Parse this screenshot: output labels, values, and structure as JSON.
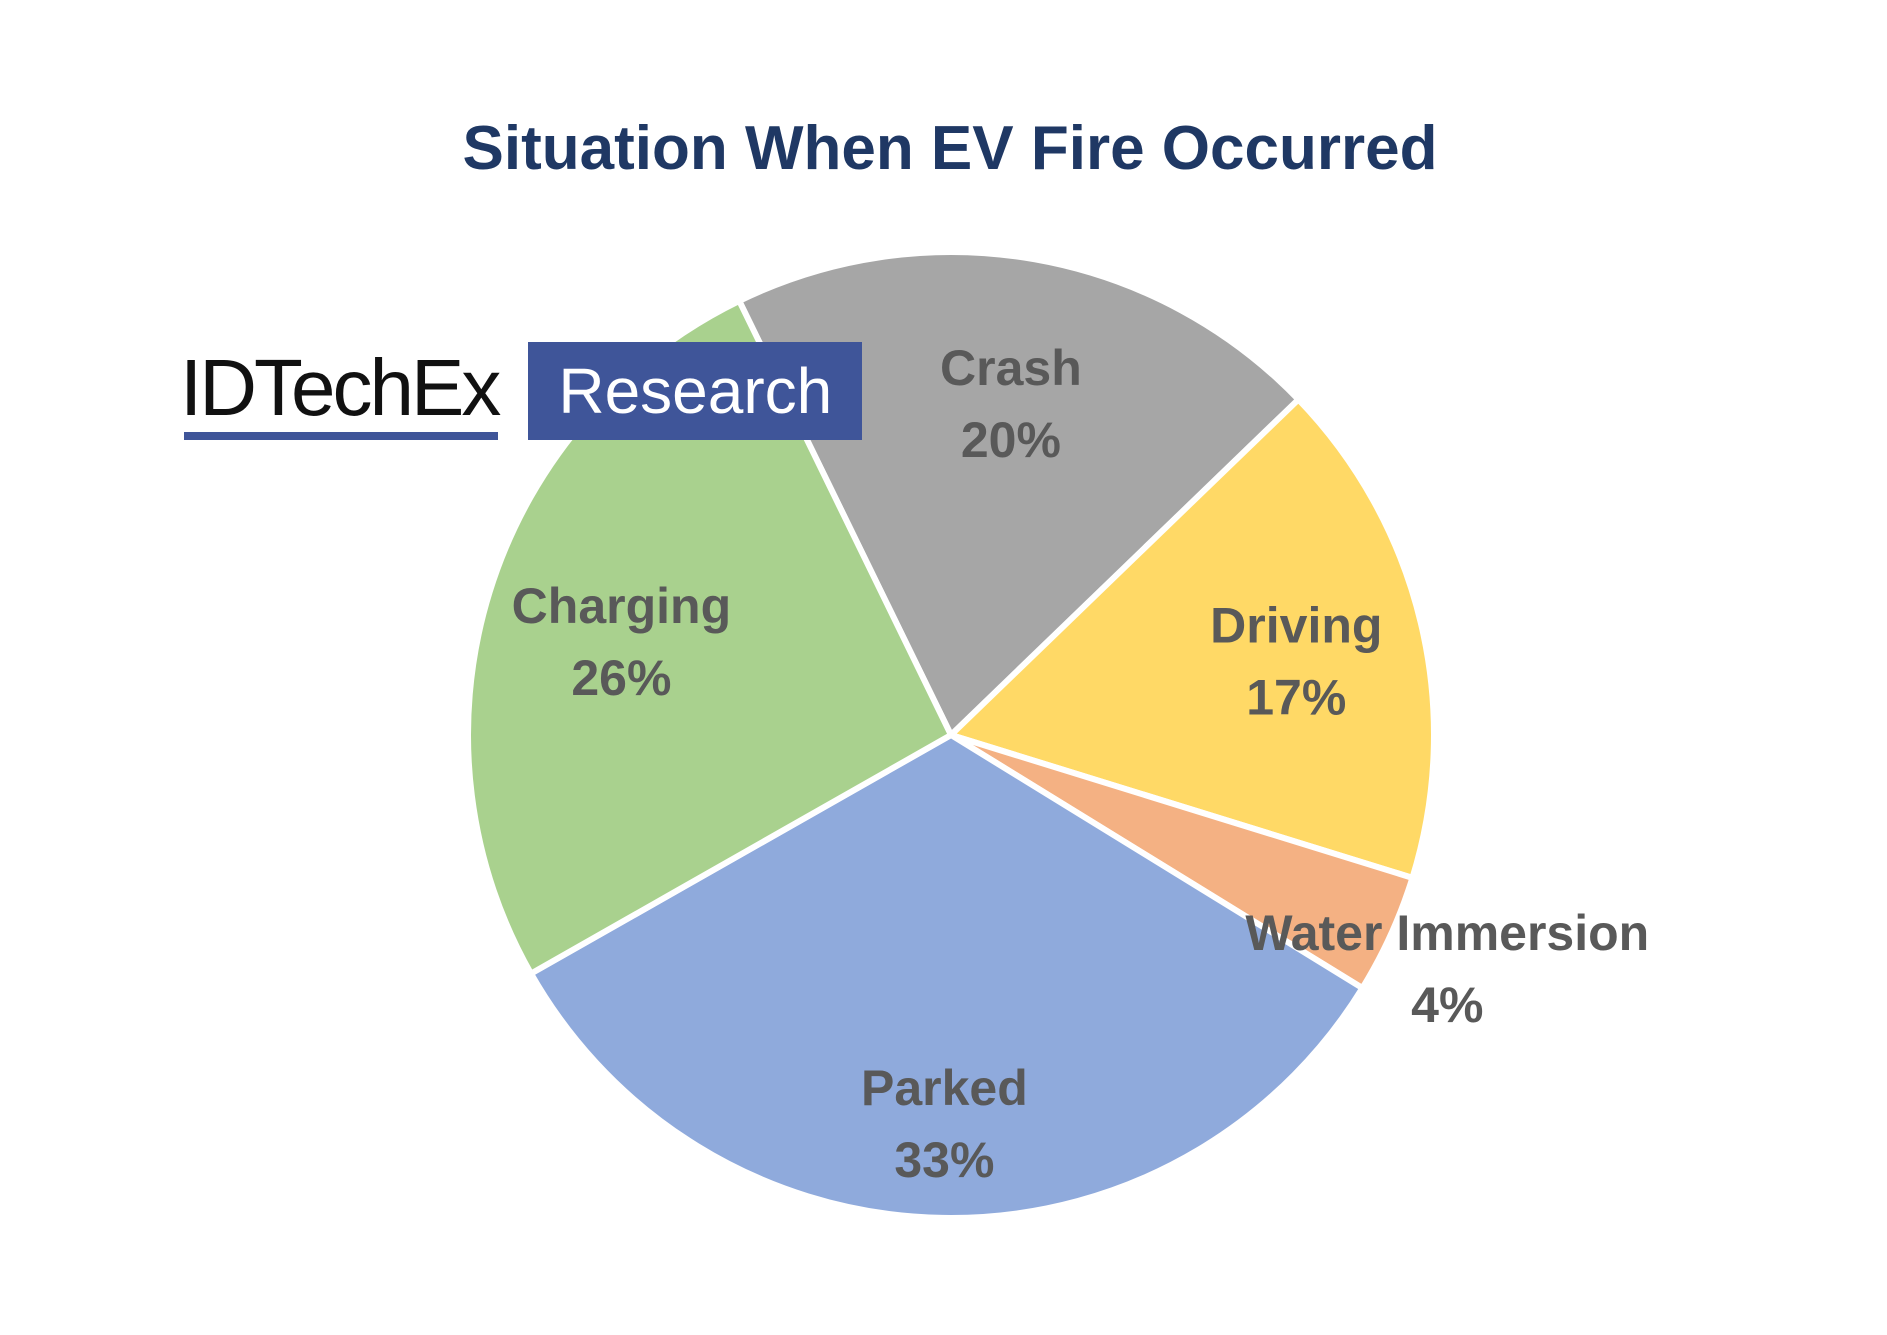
{
  "chart_data": {
    "type": "pie",
    "title": "Situation When EV Fire Occurred",
    "slices": [
      {
        "label": "Crash",
        "value": 20,
        "value_label": "20%",
        "color": "#a6a6a6"
      },
      {
        "label": "Driving",
        "value": 17,
        "value_label": "17%",
        "color": "#ffd966"
      },
      {
        "label": "Water Immersion",
        "value": 4,
        "value_label": "4%",
        "color": "#f4b183"
      },
      {
        "label": "Parked",
        "value": 33,
        "value_label": "33%",
        "color": "#8faadc"
      },
      {
        "label": "Charging",
        "value": 26,
        "value_label": "26%",
        "color": "#a9d18e"
      }
    ],
    "start_angle_deg": -26,
    "direction": "clockwise",
    "legend": "none",
    "labels": "category and percentage on each slice"
  },
  "logo": {
    "name": "IDTechEx",
    "box_text": "Research",
    "box_color": "#3f5599"
  },
  "colors": {
    "title": "#1f3864",
    "label_text": "#595959",
    "slice_border": "#ffffff"
  }
}
